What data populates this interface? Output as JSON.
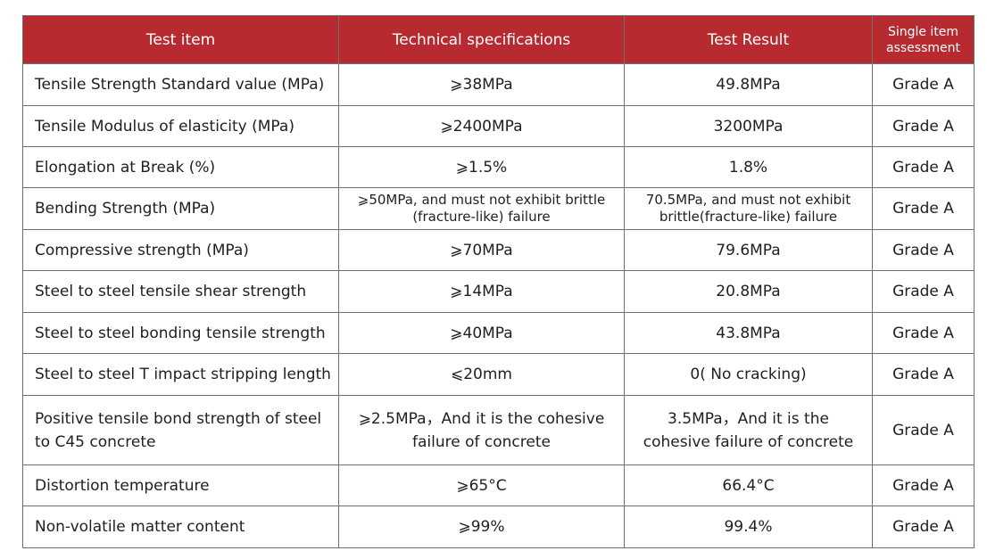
{
  "table": {
    "headers": {
      "item": "Test item",
      "spec": "Technical specifications",
      "result": "Test Result",
      "assessment_line1": "Single item",
      "assessment_line2": "assessment"
    },
    "rows": [
      {
        "item": "Tensile Strength Standard value (MPa)",
        "spec": "⩾38MPa",
        "result": "49.8MPa",
        "assessment": "Grade A"
      },
      {
        "item": "Tensile Modulus of elasticity (MPa)",
        "spec": "⩾2400MPa",
        "result": "3200MPa",
        "assessment": "Grade A"
      },
      {
        "item": "Elongation at Break (%)",
        "spec": "⩾1.5%",
        "result": "1.8%",
        "assessment": "Grade A"
      },
      {
        "item": "Bending Strength (MPa)",
        "spec": "⩾50MPa, and must not exhibit brittle (fracture-like) failure",
        "result": "70.5MPa, and must not exhibit brittle(fracture-like) failure",
        "assessment": "Grade A"
      },
      {
        "item": "Compressive strength (MPa)",
        "spec": "⩾70MPa",
        "result": "79.6MPa",
        "assessment": "Grade A"
      },
      {
        "item": "Steel to steel tensile shear strength",
        "spec": "⩾14MPa",
        "result": "20.8MPa",
        "assessment": "Grade A"
      },
      {
        "item": "Steel to steel bonding tensile strength",
        "spec": "⩾40MPa",
        "result": "43.8MPa",
        "assessment": "Grade A"
      },
      {
        "item": "Steel to steel T impact stripping length",
        "spec": "⩽20mm",
        "result": "0( No cracking)",
        "assessment": "Grade A"
      },
      {
        "item": "Positive tensile bond strength of steel to C45 concrete",
        "spec": "⩾2.5MPa，And it is the cohesive failure of concrete",
        "result": "3.5MPa，And it is the cohesive failure of concrete",
        "assessment": "Grade A"
      },
      {
        "item": "Distortion temperature",
        "spec": "⩾65°C",
        "result": "66.4°C",
        "assessment": "Grade A"
      },
      {
        "item": "Non-volatile matter content",
        "spec": "⩾99%",
        "result": "99.4%",
        "assessment": "Grade A"
      }
    ]
  }
}
